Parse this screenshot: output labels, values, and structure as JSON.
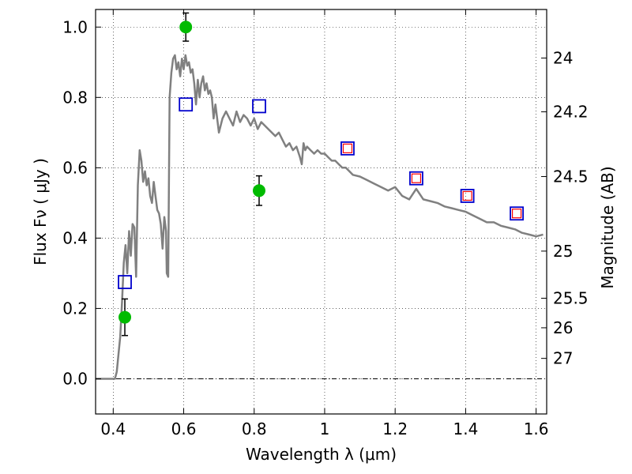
{
  "chart_data": {
    "type": "scatter",
    "title": "",
    "xlabel": "Wavelength  λ (μm)",
    "ylabel": "Flux  Fν  ( μJy )",
    "y2label": "Magnitude (AB)",
    "xlim": [
      0.35,
      1.63
    ],
    "ylim": [
      -0.1,
      1.05
    ],
    "grid": true,
    "x_ticks": [
      0.4,
      0.6,
      0.8,
      1.0,
      1.2,
      1.4,
      1.6
    ],
    "x_tick_labels": [
      "0.4",
      "0.6",
      "0.8",
      "1",
      "1.2",
      "1.4",
      "1.6"
    ],
    "y_ticks": [
      0.0,
      0.2,
      0.4,
      0.6,
      0.8,
      1.0
    ],
    "y_tick_labels": [
      "0.0",
      "0.2",
      "0.4",
      "0.6",
      "0.8",
      "1.0"
    ],
    "mag_ticks": [
      {
        "label": "24",
        "flux": 0.912
      },
      {
        "label": "24.2",
        "flux": 0.759
      },
      {
        "label": "24.5",
        "flux": 0.575
      },
      {
        "label": "25",
        "flux": 0.363
      },
      {
        "label": "25.5",
        "flux": 0.229
      },
      {
        "label": "26",
        "flux": 0.145
      },
      {
        "label": "27",
        "flux": 0.058
      }
    ],
    "series": [
      {
        "kind": "template_sed",
        "color": "#808080",
        "x": [
          0.35,
          0.4,
          0.405,
          0.41,
          0.415,
          0.42,
          0.425,
          0.43,
          0.435,
          0.44,
          0.445,
          0.45,
          0.455,
          0.46,
          0.465,
          0.47,
          0.475,
          0.48,
          0.485,
          0.49,
          0.495,
          0.5,
          0.505,
          0.51,
          0.515,
          0.52,
          0.525,
          0.53,
          0.535,
          0.54,
          0.545,
          0.55,
          0.552,
          0.556,
          0.56,
          0.565,
          0.57,
          0.575,
          0.58,
          0.585,
          0.59,
          0.595,
          0.6,
          0.605,
          0.61,
          0.615,
          0.62,
          0.625,
          0.63,
          0.635,
          0.64,
          0.645,
          0.65,
          0.655,
          0.66,
          0.665,
          0.67,
          0.675,
          0.68,
          0.685,
          0.69,
          0.7,
          0.71,
          0.72,
          0.73,
          0.74,
          0.75,
          0.76,
          0.77,
          0.78,
          0.79,
          0.8,
          0.81,
          0.82,
          0.83,
          0.84,
          0.85,
          0.86,
          0.87,
          0.88,
          0.89,
          0.9,
          0.91,
          0.92,
          0.93,
          0.935,
          0.94,
          0.945,
          0.95,
          0.96,
          0.97,
          0.98,
          0.99,
          1.0,
          1.01,
          1.02,
          1.03,
          1.04,
          1.05,
          1.06,
          1.07,
          1.08,
          1.1,
          1.12,
          1.14,
          1.16,
          1.18,
          1.2,
          1.22,
          1.24,
          1.26,
          1.28,
          1.3,
          1.32,
          1.34,
          1.36,
          1.38,
          1.4,
          1.42,
          1.44,
          1.46,
          1.48,
          1.5,
          1.52,
          1.54,
          1.56,
          1.58,
          1.6,
          1.62
        ],
        "y": [
          0.0,
          0.0,
          0.0,
          0.02,
          0.07,
          0.12,
          0.22,
          0.33,
          0.38,
          0.3,
          0.42,
          0.35,
          0.44,
          0.43,
          0.29,
          0.55,
          0.65,
          0.62,
          0.56,
          0.59,
          0.55,
          0.57,
          0.52,
          0.5,
          0.56,
          0.52,
          0.48,
          0.47,
          0.44,
          0.37,
          0.46,
          0.42,
          0.3,
          0.29,
          0.8,
          0.87,
          0.91,
          0.92,
          0.88,
          0.9,
          0.86,
          0.91,
          0.88,
          0.92,
          0.89,
          0.9,
          0.87,
          0.88,
          0.84,
          0.78,
          0.85,
          0.8,
          0.84,
          0.86,
          0.82,
          0.84,
          0.81,
          0.82,
          0.8,
          0.74,
          0.78,
          0.7,
          0.74,
          0.76,
          0.74,
          0.72,
          0.76,
          0.73,
          0.75,
          0.74,
          0.72,
          0.74,
          0.71,
          0.73,
          0.72,
          0.71,
          0.7,
          0.69,
          0.7,
          0.68,
          0.66,
          0.67,
          0.65,
          0.66,
          0.63,
          0.61,
          0.67,
          0.65,
          0.66,
          0.65,
          0.64,
          0.65,
          0.64,
          0.64,
          0.63,
          0.62,
          0.62,
          0.61,
          0.6,
          0.6,
          0.59,
          0.58,
          0.575,
          0.565,
          0.555,
          0.545,
          0.535,
          0.545,
          0.52,
          0.51,
          0.54,
          0.51,
          0.505,
          0.5,
          0.49,
          0.485,
          0.48,
          0.475,
          0.465,
          0.455,
          0.445,
          0.445,
          0.435,
          0.43,
          0.425,
          0.415,
          0.41,
          0.405,
          0.41
        ]
      },
      {
        "kind": "observed",
        "color": "#00bb00",
        "x": [
          0.433,
          0.606,
          0.814
        ],
        "y": [
          0.175,
          1.0,
          0.535
        ],
        "yerr": [
          0.052,
          0.04,
          0.042
        ]
      },
      {
        "kind": "model_broadband",
        "color": "#0000cc",
        "x": [
          0.433,
          0.606,
          0.814,
          1.065,
          1.26,
          1.405,
          1.545
        ],
        "y": [
          0.275,
          0.78,
          0.775,
          0.655,
          0.57,
          0.52,
          0.47
        ]
      },
      {
        "kind": "model_inner",
        "color": "#ff0000",
        "x": [
          1.065,
          1.26,
          1.405,
          1.545
        ],
        "y": [
          0.655,
          0.57,
          0.52,
          0.47
        ]
      }
    ]
  }
}
